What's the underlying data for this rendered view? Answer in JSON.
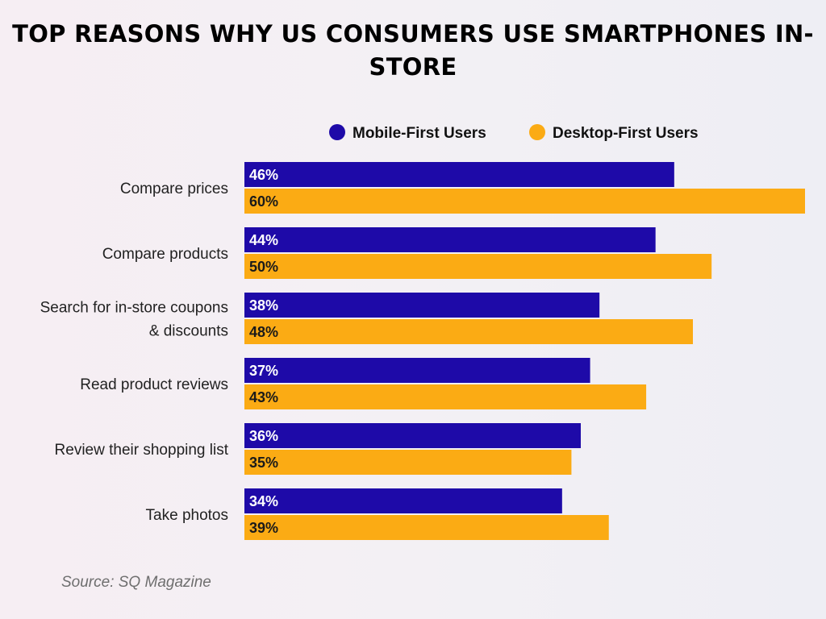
{
  "chart_data": {
    "type": "bar",
    "orientation": "horizontal",
    "title": "TOP REASONS WHY US CONSUMERS USE SMARTPHONES IN-STORE",
    "categories": [
      "Compare prices",
      "Compare products",
      "Search for in-store coupons & discounts",
      "Read product reviews",
      "Review their shopping list",
      "Take photos"
    ],
    "category_lines": [
      [
        "Compare prices"
      ],
      [
        "Compare products"
      ],
      [
        "Search for in-store coupons",
        "& discounts"
      ],
      [
        "Read product reviews"
      ],
      [
        "Review their shopping list"
      ],
      [
        "Take photos"
      ]
    ],
    "series": [
      {
        "name": "Mobile-First Users",
        "color": "#1e0aa8",
        "label_color": "#ffffff",
        "values": [
          46,
          44,
          38,
          37,
          36,
          34
        ]
      },
      {
        "name": "Desktop-First Users",
        "color": "#fbab14",
        "label_color": "#1a1a1a",
        "values": [
          60,
          50,
          48,
          43,
          35,
          39
        ]
      }
    ],
    "value_suffix": "%",
    "xlim": [
      0,
      60
    ],
    "grid": false,
    "legend_position": "top",
    "source": "Source: SQ Magazine"
  }
}
